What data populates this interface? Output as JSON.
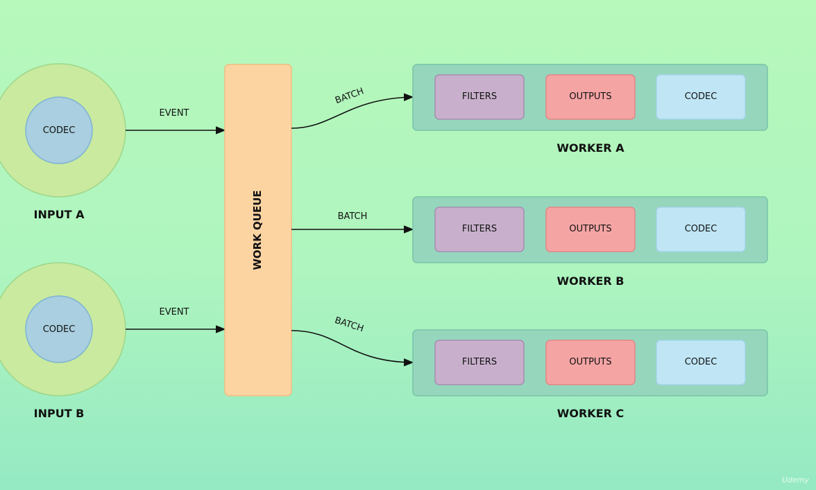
{
  "inputs": [
    {
      "name": "INPUT A",
      "inner_label": "CODEC",
      "edge_label": "EVENT"
    },
    {
      "name": "INPUT B",
      "inner_label": "CODEC",
      "edge_label": "EVENT"
    }
  ],
  "queue": {
    "label": "WORK QUEUE"
  },
  "batch_labels": [
    "BATCH",
    "BATCH",
    "BATCH"
  ],
  "workers": [
    {
      "name": "WORKER A",
      "stages": [
        "FILTERS",
        "OUTPUTS",
        "CODEC"
      ]
    },
    {
      "name": "WORKER B",
      "stages": [
        "FILTERS",
        "OUTPUTS",
        "CODEC"
      ]
    },
    {
      "name": "WORKER C",
      "stages": [
        "FILTERS",
        "OUTPUTS",
        "CODEC"
      ]
    }
  ],
  "watermark": "Udemy",
  "colors": {
    "input_outer": "#c9ea9f",
    "codec_circle": "#a9cfe0",
    "queue": "#fbd4a2",
    "worker_box": "#95d6bd",
    "filters": "#c8b0cc",
    "outputs": "#f5a4a4",
    "worker_codec": "#c0e6f6"
  }
}
